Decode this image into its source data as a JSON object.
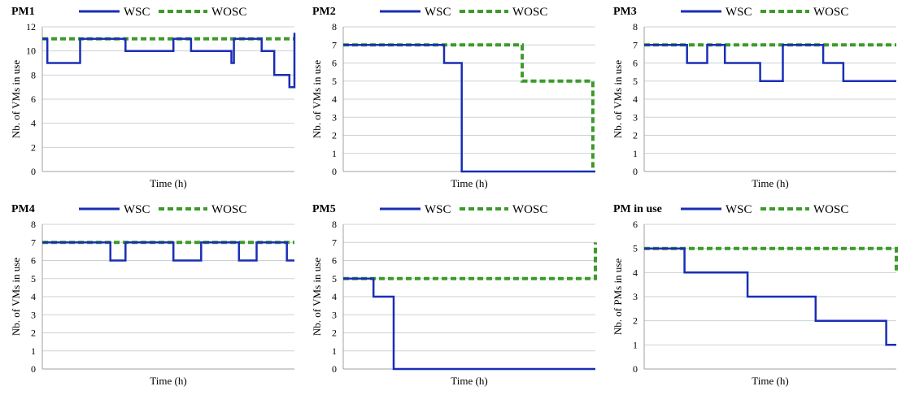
{
  "colors": {
    "wsc": "#1a2eb5",
    "wosc": "#3d9a2a",
    "grid": "#c9d3d7",
    "axis": "#a0a0a0"
  },
  "legend": {
    "wsc": "WSC",
    "wosc": "WOSC"
  },
  "chart_data": [
    {
      "type": "line",
      "title": "PM1",
      "xlabel": "Time (h)",
      "ylabel": "Nb. of VMs in use",
      "ylim": [
        0,
        12
      ],
      "yticks": [
        0,
        2,
        4,
        6,
        8,
        10,
        12
      ],
      "xlim": [
        0,
        100
      ],
      "grid": true,
      "legend_position": "top",
      "series": [
        {
          "name": "WSC",
          "style": "solid",
          "x": [
            0,
            2,
            2,
            15,
            15,
            33,
            33,
            52,
            52,
            59,
            59,
            75,
            75,
            76,
            76,
            87,
            87,
            92,
            92,
            98,
            98,
            100,
            100
          ],
          "y": [
            11,
            11,
            9,
            9,
            11,
            11,
            10,
            10,
            11,
            11,
            10,
            10,
            9,
            9,
            11,
            11,
            10,
            10,
            8,
            8,
            7,
            7,
            11.5
          ]
        },
        {
          "name": "WOSC",
          "style": "dotted",
          "x": [
            0,
            100
          ],
          "y": [
            11,
            11
          ]
        }
      ]
    },
    {
      "type": "line",
      "title": "PM2",
      "xlabel": "Time (h)",
      "ylabel": "Nb. of VMs in use",
      "ylim": [
        0,
        8
      ],
      "yticks": [
        0,
        1,
        2,
        3,
        4,
        5,
        6,
        7,
        8
      ],
      "xlim": [
        0,
        100
      ],
      "grid": true,
      "legend_position": "top",
      "series": [
        {
          "name": "WSC",
          "style": "solid",
          "x": [
            0,
            40,
            40,
            47,
            47,
            100
          ],
          "y": [
            7,
            7,
            6,
            6,
            0,
            0
          ]
        },
        {
          "name": "WOSC",
          "style": "dotted",
          "x": [
            0,
            71,
            71,
            99,
            99
          ],
          "y": [
            7,
            7,
            5,
            5,
            0
          ]
        }
      ]
    },
    {
      "type": "line",
      "title": "PM3",
      "xlabel": "Time (h)",
      "ylabel": "Nb. of VMs in use",
      "ylim": [
        0,
        8
      ],
      "yticks": [
        0,
        1,
        2,
        3,
        4,
        5,
        6,
        7,
        8
      ],
      "xlim": [
        0,
        100
      ],
      "grid": true,
      "legend_position": "top",
      "series": [
        {
          "name": "WSC",
          "style": "solid",
          "x": [
            0,
            17,
            17,
            25,
            25,
            32,
            32,
            46,
            46,
            55,
            55,
            71,
            71,
            79,
            79,
            100
          ],
          "y": [
            7,
            7,
            6,
            6,
            7,
            7,
            6,
            6,
            5,
            5,
            7,
            7,
            6,
            6,
            5,
            5
          ]
        },
        {
          "name": "WOSC",
          "style": "dotted",
          "x": [
            0,
            100
          ],
          "y": [
            7,
            7
          ]
        }
      ]
    },
    {
      "type": "line",
      "title": "PM4",
      "xlabel": "Time (h)",
      "ylabel": "Nb. of VMs in use",
      "ylim": [
        0,
        8
      ],
      "yticks": [
        0,
        1,
        2,
        3,
        4,
        5,
        6,
        7,
        8
      ],
      "xlim": [
        0,
        100
      ],
      "grid": true,
      "legend_position": "top",
      "series": [
        {
          "name": "WSC",
          "style": "solid",
          "x": [
            0,
            27,
            27,
            33,
            33,
            52,
            52,
            63,
            63,
            78,
            78,
            85,
            85,
            97,
            97,
            100
          ],
          "y": [
            7,
            7,
            6,
            6,
            7,
            7,
            6,
            6,
            7,
            7,
            6,
            6,
            7,
            7,
            6,
            6
          ]
        },
        {
          "name": "WOSC",
          "style": "dotted",
          "x": [
            0,
            100
          ],
          "y": [
            7,
            7
          ]
        }
      ]
    },
    {
      "type": "line",
      "title": "PM5",
      "xlabel": "Time (h)",
      "ylabel": "Nb. of VMs in use",
      "ylim": [
        0,
        8
      ],
      "yticks": [
        0,
        1,
        2,
        3,
        4,
        5,
        6,
        7,
        8
      ],
      "xlim": [
        0,
        100
      ],
      "grid": true,
      "legend_position": "top",
      "series": [
        {
          "name": "WSC",
          "style": "solid",
          "x": [
            0,
            12,
            12,
            20,
            20,
            100
          ],
          "y": [
            5,
            5,
            4,
            4,
            0,
            0
          ]
        },
        {
          "name": "WOSC",
          "style": "dotted",
          "x": [
            0,
            100,
            100
          ],
          "y": [
            5,
            5,
            7
          ]
        }
      ]
    },
    {
      "type": "line",
      "title": "PM in use",
      "xlabel": "Time (h)",
      "ylabel": "Nb. of PMs in use",
      "ylim": [
        0,
        6
      ],
      "yticks": [
        0,
        1,
        2,
        3,
        4,
        5,
        6
      ],
      "xlim": [
        0,
        100
      ],
      "grid": true,
      "legend_position": "top",
      "series": [
        {
          "name": "WSC",
          "style": "solid",
          "x": [
            0,
            16,
            16,
            41,
            41,
            68,
            68,
            96,
            96,
            100
          ],
          "y": [
            5,
            5,
            4,
            4,
            3,
            3,
            2,
            2,
            1,
            1
          ]
        },
        {
          "name": "WOSC",
          "style": "dotted",
          "x": [
            0,
            100,
            100
          ],
          "y": [
            5,
            5,
            4
          ]
        }
      ]
    }
  ]
}
